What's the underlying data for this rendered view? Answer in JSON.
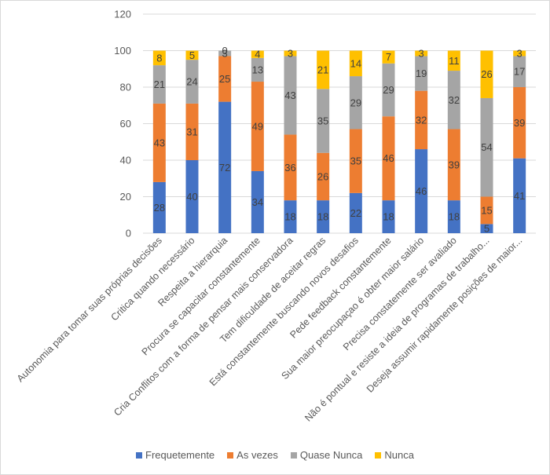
{
  "chart_data": {
    "type": "bar",
    "stacked": true,
    "title": "",
    "xlabel": "",
    "ylabel": "",
    "ylim": [
      0,
      120
    ],
    "yticks": [
      0,
      20,
      40,
      60,
      80,
      100,
      120
    ],
    "grid": true,
    "legend_position": "bottom",
    "categories": [
      "Autonomia para tomar suas próprias decisões",
      "Critica quando necessário",
      "Respeita a hierarquia",
      "Procura se capacitar constantemente",
      "Cria Conflitos com a forma de pensar mais conservadora",
      "Tem dificuldade de aceitar regras",
      "Está constantemente buscando novos desafios",
      "Pede feedback constantemente",
      "Sua maior preocupaçao é obter maior salário",
      "Precisa constatemente ser avaliado",
      "Não é pontual e resiste a ideia de programas de trabalho...",
      "Deseja assumir rapidamente posições de maior..."
    ],
    "series": [
      {
        "name": "Frequetemente",
        "color": "#4472c4",
        "values": [
          28,
          40,
          72,
          34,
          18,
          18,
          22,
          18,
          46,
          18,
          5,
          41
        ]
      },
      {
        "name": "As vezes",
        "color": "#ed7d31",
        "values": [
          43,
          31,
          25,
          49,
          36,
          26,
          35,
          46,
          32,
          39,
          15,
          39
        ]
      },
      {
        "name": "Quase Nunca",
        "color": "#a5a5a5",
        "values": [
          21,
          24,
          3,
          13,
          43,
          35,
          29,
          29,
          19,
          32,
          54,
          17
        ]
      },
      {
        "name": "Nunca",
        "color": "#ffc000",
        "values": [
          8,
          5,
          0,
          4,
          3,
          21,
          14,
          7,
          3,
          11,
          26,
          3
        ]
      }
    ]
  }
}
